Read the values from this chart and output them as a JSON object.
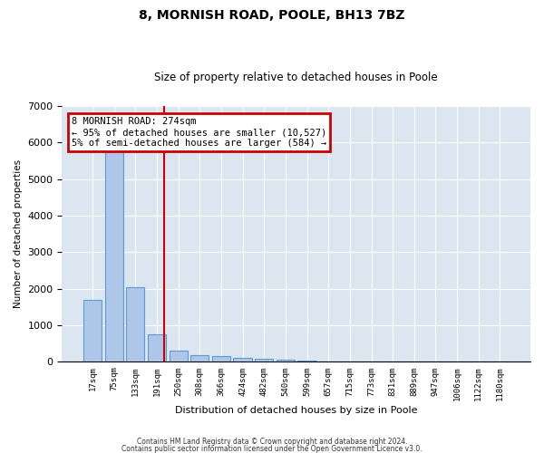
{
  "title": "8, MORNISH ROAD, POOLE, BH13 7BZ",
  "subtitle": "Size of property relative to detached houses in Poole",
  "xlabel": "Distribution of detached houses by size in Poole",
  "ylabel": "Number of detached properties",
  "bin_labels": [
    "17sqm",
    "75sqm",
    "133sqm",
    "191sqm",
    "250sqm",
    "308sqm",
    "366sqm",
    "424sqm",
    "482sqm",
    "540sqm",
    "599sqm",
    "657sqm",
    "715sqm",
    "773sqm",
    "831sqm",
    "889sqm",
    "947sqm",
    "1006sqm",
    "1122sqm",
    "1180sqm"
  ],
  "bar_heights": [
    1700,
    5750,
    2050,
    750,
    300,
    190,
    150,
    100,
    95,
    50,
    45,
    0,
    0,
    0,
    0,
    0,
    0,
    0,
    0,
    0
  ],
  "bar_color": "#aec6e8",
  "bar_edgecolor": "#5b9bd5",
  "ylim": [
    0,
    7000
  ],
  "yticks": [
    0,
    1000,
    2000,
    3000,
    4000,
    5000,
    6000,
    7000
  ],
  "property_line_x": 3.36,
  "property_line_color": "#cc0000",
  "annotation_text": "8 MORNISH ROAD: 274sqm\n← 95% of detached houses are smaller (10,527)\n5% of semi-detached houses are larger (584) →",
  "annotation_box_color": "#cc0000",
  "annotation_text_color": "#000000",
  "background_color": "#dce6f1",
  "footer_line1": "Contains HM Land Registry data © Crown copyright and database right 2024.",
  "footer_line2": "Contains public sector information licensed under the Open Government Licence v3.0."
}
